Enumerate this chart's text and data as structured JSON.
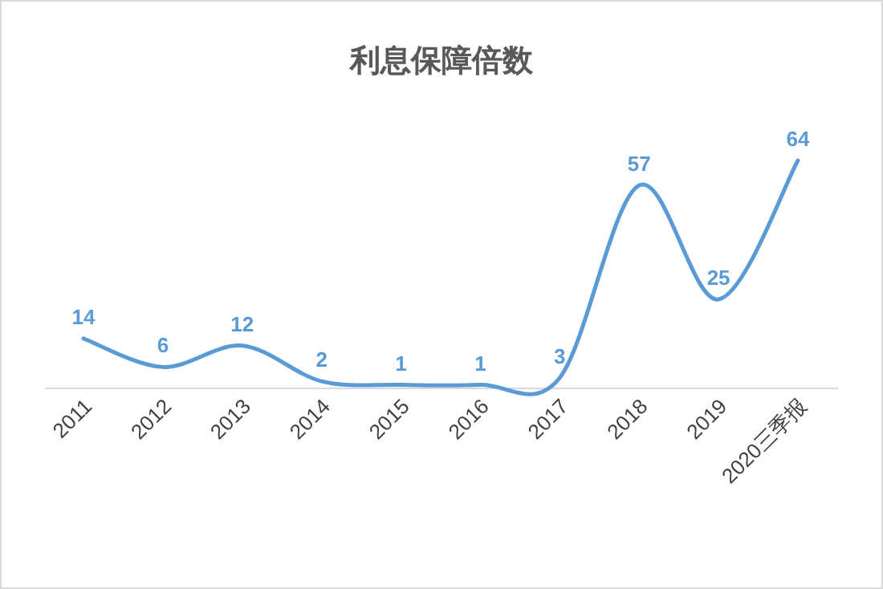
{
  "chart_data": {
    "type": "line",
    "title": "利息保障倍数",
    "categories": [
      "2011",
      "2012",
      "2013",
      "2014",
      "2015",
      "2016",
      "2017",
      "2018",
      "2019",
      "2020三季报"
    ],
    "series": [
      {
        "color": "#5b9bd5",
        "values": [
          14,
          6,
          12,
          2,
          1,
          1,
          3,
          57,
          25,
          64
        ]
      }
    ],
    "data_labels": true
  }
}
